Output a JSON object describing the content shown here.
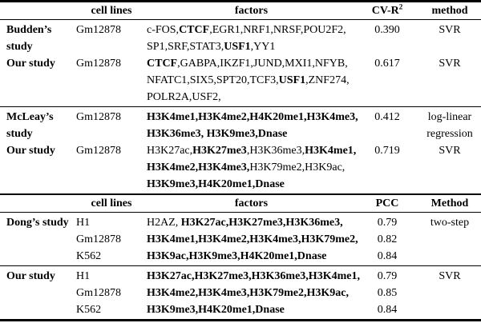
{
  "page": {
    "background": "#ffffff",
    "text_color": "#000000",
    "rule_color": "#000000"
  },
  "table1": {
    "header": {
      "study": "",
      "cell_lines": "cell lines",
      "factors": "factors",
      "metric": "CV-R",
      "metric_superscript": "2",
      "method": "method"
    },
    "rows": [
      {
        "study": [
          "Budden’s",
          "study"
        ],
        "cells": [
          "Gm12878"
        ],
        "factors": [
          [
            [
              "c-FOS,",
              0
            ],
            [
              "CTCF",
              1
            ],
            [
              ",EGR1,NRF1,NRSF,POU2F2,",
              0
            ]
          ],
          [
            [
              "SP1,SRF,STAT3,",
              0
            ],
            [
              "USF1",
              1
            ],
            [
              ",YY1",
              0
            ]
          ]
        ],
        "metric": [
          "0.390"
        ],
        "method": [
          "SVR"
        ],
        "separator_above": false
      },
      {
        "study": [
          "Our study"
        ],
        "cells": [
          "Gm12878"
        ],
        "factors": [
          [
            [
              "CTCF",
              1
            ],
            [
              ",GABPA,IKZF1,JUND,MXI1,NFYB,",
              0
            ]
          ],
          [
            [
              "NFATC1,SIX5,SPT20,TCF3,",
              0
            ],
            [
              "USF1",
              1
            ],
            [
              ",ZNF274,",
              0
            ]
          ],
          [
            [
              "POLR2A,USF2,",
              0
            ]
          ]
        ],
        "metric": [
          "0.617"
        ],
        "method": [
          "SVR"
        ],
        "separator_above": false
      },
      {
        "study": [
          "McLeay’s",
          "study"
        ],
        "cells": [
          "Gm12878"
        ],
        "factors": [
          [
            [
              "H3K4me1,H3K4me2,H4K20me1,H3K4me3,",
              1
            ]
          ],
          [
            [
              "H3K36me3, H3K9me3,Dnase",
              1
            ]
          ]
        ],
        "metric": [
          "0.412"
        ],
        "method": [
          "log-linear",
          "regression"
        ],
        "separator_above": true
      },
      {
        "study": [
          "Our study"
        ],
        "cells": [
          "Gm12878"
        ],
        "factors": [
          [
            [
              "H3K27ac,",
              0
            ],
            [
              "H3K27me3",
              1
            ],
            [
              ",H3K36me3,",
              0
            ],
            [
              "H3K4me1,",
              1
            ]
          ],
          [
            [
              "H3K4me2,H3K4me3,",
              1
            ],
            [
              "H3K79me2,H3K9ac,",
              0
            ]
          ],
          [
            [
              "H3K9me3,H4K20me1,Dnase",
              1
            ]
          ]
        ],
        "metric": [
          "0.719"
        ],
        "method": [
          "SVR"
        ],
        "separator_above": false
      }
    ]
  },
  "table2": {
    "header": {
      "study": "",
      "cell_lines": "cell lines",
      "factors": "factors",
      "metric": "PCC",
      "method": "Method"
    },
    "rows": [
      {
        "study": [
          "Dong’s study"
        ],
        "cells": [
          "H1",
          "Gm12878",
          "K562"
        ],
        "factors": [
          [
            [
              "H2AZ, ",
              0
            ],
            [
              "H3K27ac,H3K27me3,H3K36me3,",
              1
            ]
          ],
          [
            [
              "H3K4me1,H3K4me2,H3K4me3,H3K79me2,",
              1
            ]
          ],
          [
            [
              "H3K9ac,H3K9me3,H4K20me1,Dnase",
              1
            ]
          ]
        ],
        "metric": [
          "0.79",
          "0.82",
          "0.84"
        ],
        "method": [
          "two-step"
        ],
        "separator_above": false
      },
      {
        "study": [
          "Our study"
        ],
        "cells": [
          "H1",
          "Gm12878",
          "K562"
        ],
        "factors": [
          [
            [
              "H3K27ac,H3K27me3,H3K36me3,H3K4me1,",
              1
            ]
          ],
          [
            [
              "H3K4me2,H3K4me3,H3K79me2,H3K9ac,",
              1
            ]
          ],
          [
            [
              "H3K9me3,H4K20me1,Dnase",
              1
            ]
          ]
        ],
        "metric": [
          "0.79",
          "0.85",
          "0.84"
        ],
        "method": [
          "SVR"
        ],
        "separator_above": true
      }
    ]
  }
}
